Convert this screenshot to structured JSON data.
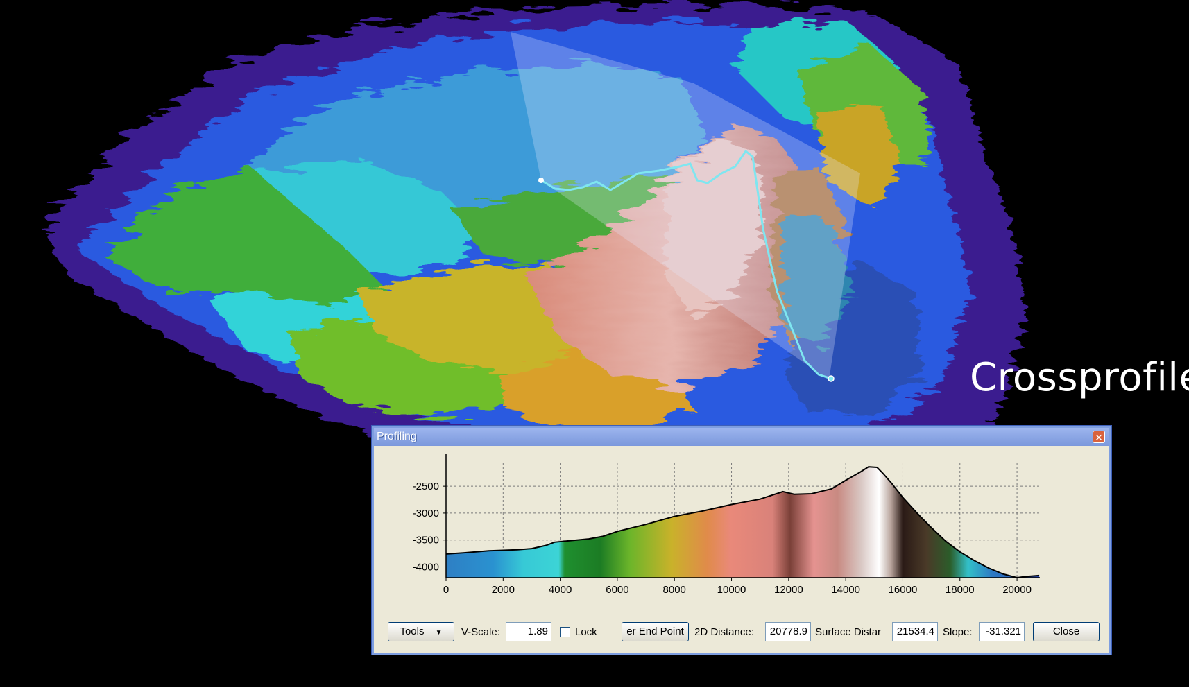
{
  "overlay_caption": "Crossprofile",
  "window": {
    "title": "Profiling",
    "close_icon": "close-x-icon"
  },
  "toolbar": {
    "tools_label": "Tools",
    "vscale_label": "V-Scale:",
    "vscale_value": "1.89",
    "lock_label": "Lock",
    "lock_checked": false,
    "end_point_label": "er End Point",
    "dist2d_label": "2D Distance:",
    "dist2d_value": "20778.9",
    "surface_label": "Surface Distar",
    "surface_value": "21534.4",
    "slope_label": "Slope:",
    "slope_value": "-31.321",
    "close_label": "Close"
  },
  "chart_data": {
    "type": "area",
    "title": "",
    "xlabel": "",
    "ylabel": "",
    "xlim": [
      0,
      20800
    ],
    "ylim": [
      -4200,
      -2060
    ],
    "x_ticks": [
      0,
      2000,
      4000,
      6000,
      8000,
      10000,
      12000,
      14000,
      16000,
      18000,
      20000
    ],
    "y_ticks": [
      -2500,
      -3000,
      -3500,
      -4000
    ],
    "grid": true,
    "fill": "depth colour ramp (blue-cyan-green-yellow-red-pink-white)",
    "x": [
      0,
      600,
      1500,
      2500,
      3000,
      3500,
      3800,
      4200,
      5000,
      5500,
      6000,
      7000,
      8000,
      9000,
      10000,
      11000,
      11800,
      12200,
      12800,
      13500,
      14000,
      14500,
      14800,
      15100,
      15300,
      15600,
      16000,
      16500,
      17000,
      17500,
      18000,
      18500,
      19000,
      19500,
      20000,
      20300,
      20778
    ],
    "y": [
      -3760,
      -3740,
      -3700,
      -3680,
      -3660,
      -3600,
      -3540,
      -3520,
      -3480,
      -3430,
      -3340,
      -3210,
      -3060,
      -2960,
      -2840,
      -2740,
      -2600,
      -2650,
      -2640,
      -2550,
      -2390,
      -2240,
      -2140,
      -2150,
      -2260,
      -2440,
      -2710,
      -3000,
      -3270,
      -3520,
      -3720,
      -3880,
      -4020,
      -4130,
      -4200,
      -4180,
      -4160
    ]
  }
}
